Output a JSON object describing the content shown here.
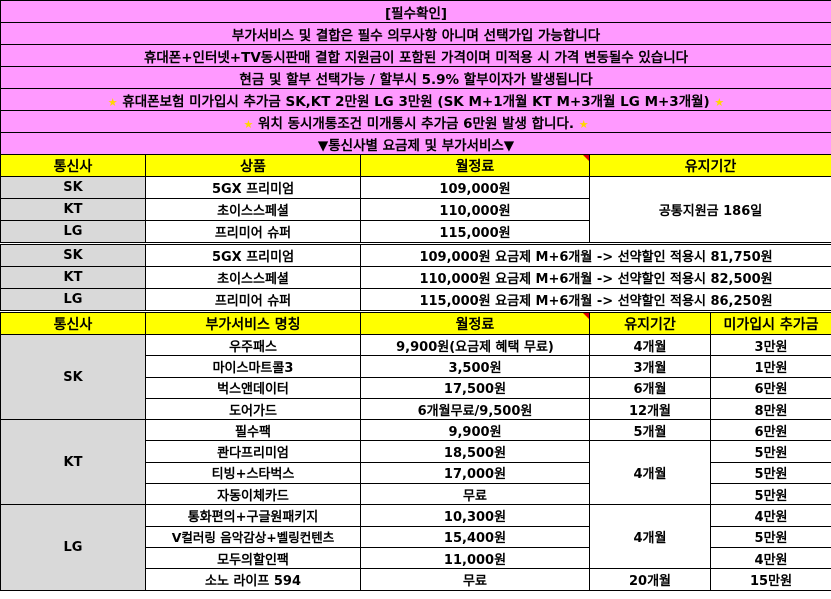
{
  "notices": [
    "[필수확인]",
    "부가서비스 및 결합은 필수 의무사항 아니며 선택가입 가능합니다",
    "휴대폰+인터넷+TV동시판매 결합 지원금이 포함된 가격이며 미적용 시 가격 변동될수 있습니다",
    "현금 및 할부 선택가능 / 할부시 5.9% 할부이자가 발생됩니다",
    "휴대폰보험 미가입시 추가금 SK,KT 2만원 LG 3만원 (SK M+1개월 KT M+3개월 LG M+3개월)",
    "워치 동시개통조건 미개통시 추가금 6만원 발생 합니다.",
    "▼통신사별 요금제 및 부가서비스▼"
  ],
  "star_glyph": "★",
  "colors": {
    "notice_bg": "#FF99FF",
    "header_bg": "#FFFF00",
    "carrier_bg": "#D9D9D9",
    "star": "#FFD700"
  },
  "plan_table": {
    "headers": [
      "통신사",
      "상품",
      "월정료",
      "유지기간"
    ],
    "rows": [
      {
        "carrier": "SK",
        "product": "5GX 프리미엄",
        "fee": "109,000원"
      },
      {
        "carrier": "KT",
        "product": "초이스스페셜",
        "fee": "110,000원"
      },
      {
        "carrier": "LG",
        "product": "프리미어 슈퍼",
        "fee": "115,000원"
      }
    ],
    "period": "공통지원금 186일"
  },
  "discount_table": {
    "rows": [
      {
        "carrier": "SK",
        "product": "5GX 프리미엄",
        "detail": "109,000원 요금제 M+6개월 -> 선약할인 적용시 81,750원"
      },
      {
        "carrier": "KT",
        "product": "초이스스페셜",
        "detail": "110,000원 요금제 M+6개월 -> 선약할인 적용시 82,500원"
      },
      {
        "carrier": "LG",
        "product": "프리미어 슈퍼",
        "detail": "115,000원 요금제 M+6개월 -> 선약할인 적용시 86,250원"
      }
    ]
  },
  "addon_table": {
    "headers": [
      "통신사",
      "부가서비스 명칭",
      "월정료",
      "유지기간",
      "미가입시 추가금"
    ],
    "groups": [
      {
        "carrier": "SK",
        "items": [
          {
            "name": "우주패스",
            "fee": "9,900원(요금제 혜택 무료)",
            "period": "4개월",
            "penalty": "3만원"
          },
          {
            "name": "마이스마트콜3",
            "fee": "3,500원",
            "period": "3개월",
            "penalty": "1만원"
          },
          {
            "name": "벅스앤데이터",
            "fee": "17,500원",
            "period": "6개월",
            "penalty": "6만원"
          },
          {
            "name": "도어가드",
            "fee": "6개월무료/9,500원",
            "period": "12개월",
            "penalty": "8만원"
          }
        ]
      },
      {
        "carrier": "KT",
        "items": [
          {
            "name": "필수팩",
            "fee": "9,900원",
            "period": "5개월",
            "penalty": "6만원"
          },
          {
            "name": "콴다프리미엄",
            "fee": "18,500원",
            "penalty": "5만원"
          },
          {
            "name": "티빙+스타벅스",
            "fee": "17,000원",
            "penalty": "5만원"
          },
          {
            "name": "자동이체카드",
            "fee": "무료",
            "penalty": "5만원"
          }
        ],
        "shared_period": "4개월"
      },
      {
        "carrier": "LG",
        "items": [
          {
            "name": "통화편의+구글원패키지",
            "fee": "10,300원",
            "penalty": "4만원"
          },
          {
            "name": "V컬러링 음악감상+벨링컨텐츠",
            "fee": "15,400원",
            "penalty": "5만원"
          },
          {
            "name": "모두의할인팩",
            "fee": "11,000원",
            "penalty": "4만원"
          },
          {
            "name": "소노 라이프 594",
            "fee": "무료",
            "period": "20개월",
            "penalty": "15만원"
          }
        ],
        "shared_period": "4개월"
      }
    ]
  }
}
